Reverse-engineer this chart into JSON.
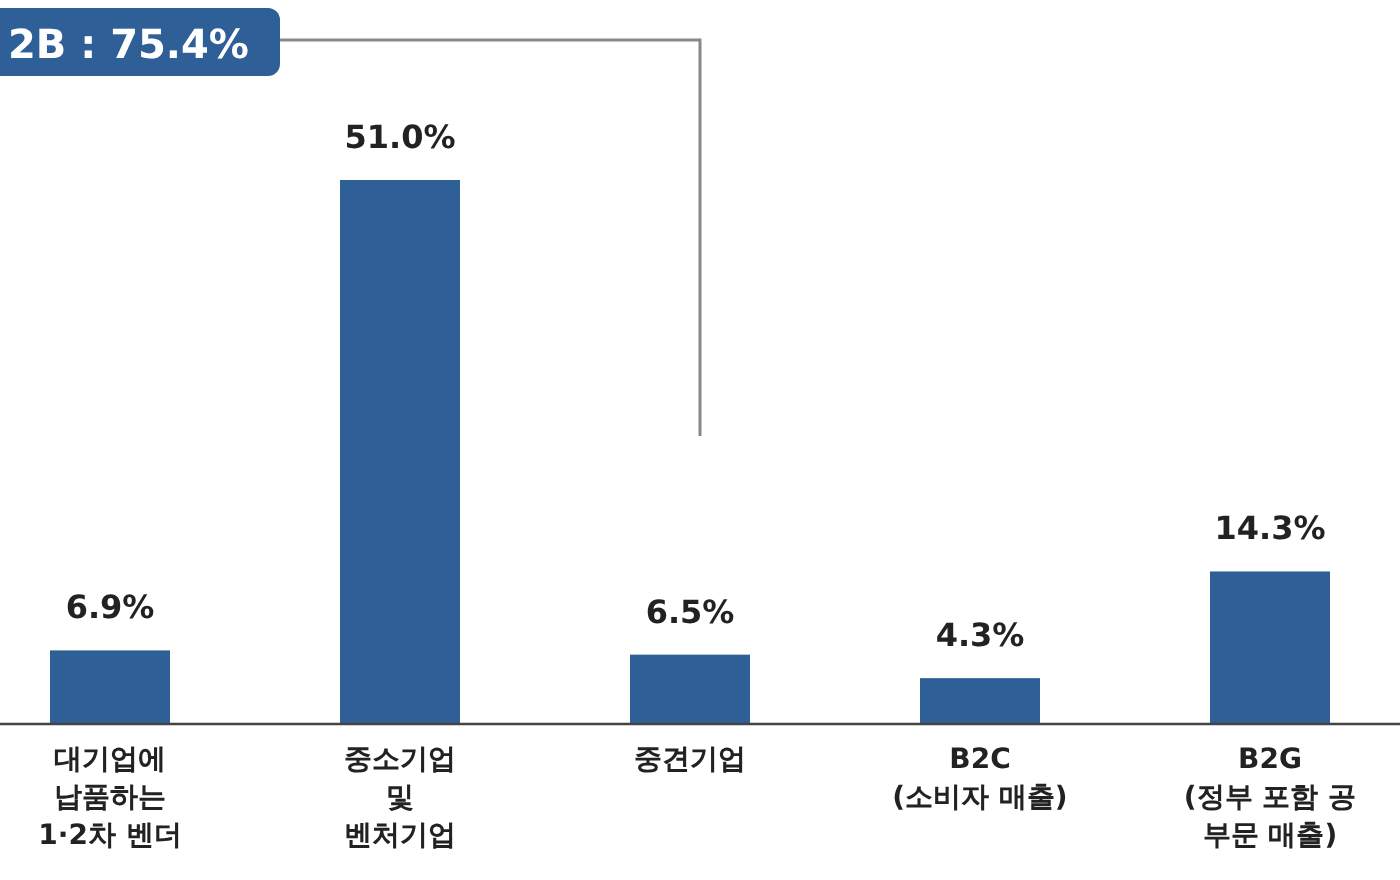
{
  "chart_data": {
    "type": "bar",
    "categories": [
      "대기업에\n납품하는\n1·2차 벤더",
      "중소기업\n및\n벤처기업",
      "중견기업",
      "B2C\n(소비자 매출)",
      "B2G\n(정부 포함 공\n부문 매출)"
    ],
    "values": [
      6.9,
      51.0,
      6.5,
      4.3,
      14.3
    ],
    "color": "#2f5f97",
    "value_labels": [
      "6.9%",
      "51.0%",
      "6.5%",
      "4.3%",
      "14.3%"
    ],
    "annotations": [
      "2B : 75.4%"
    ]
  }
}
